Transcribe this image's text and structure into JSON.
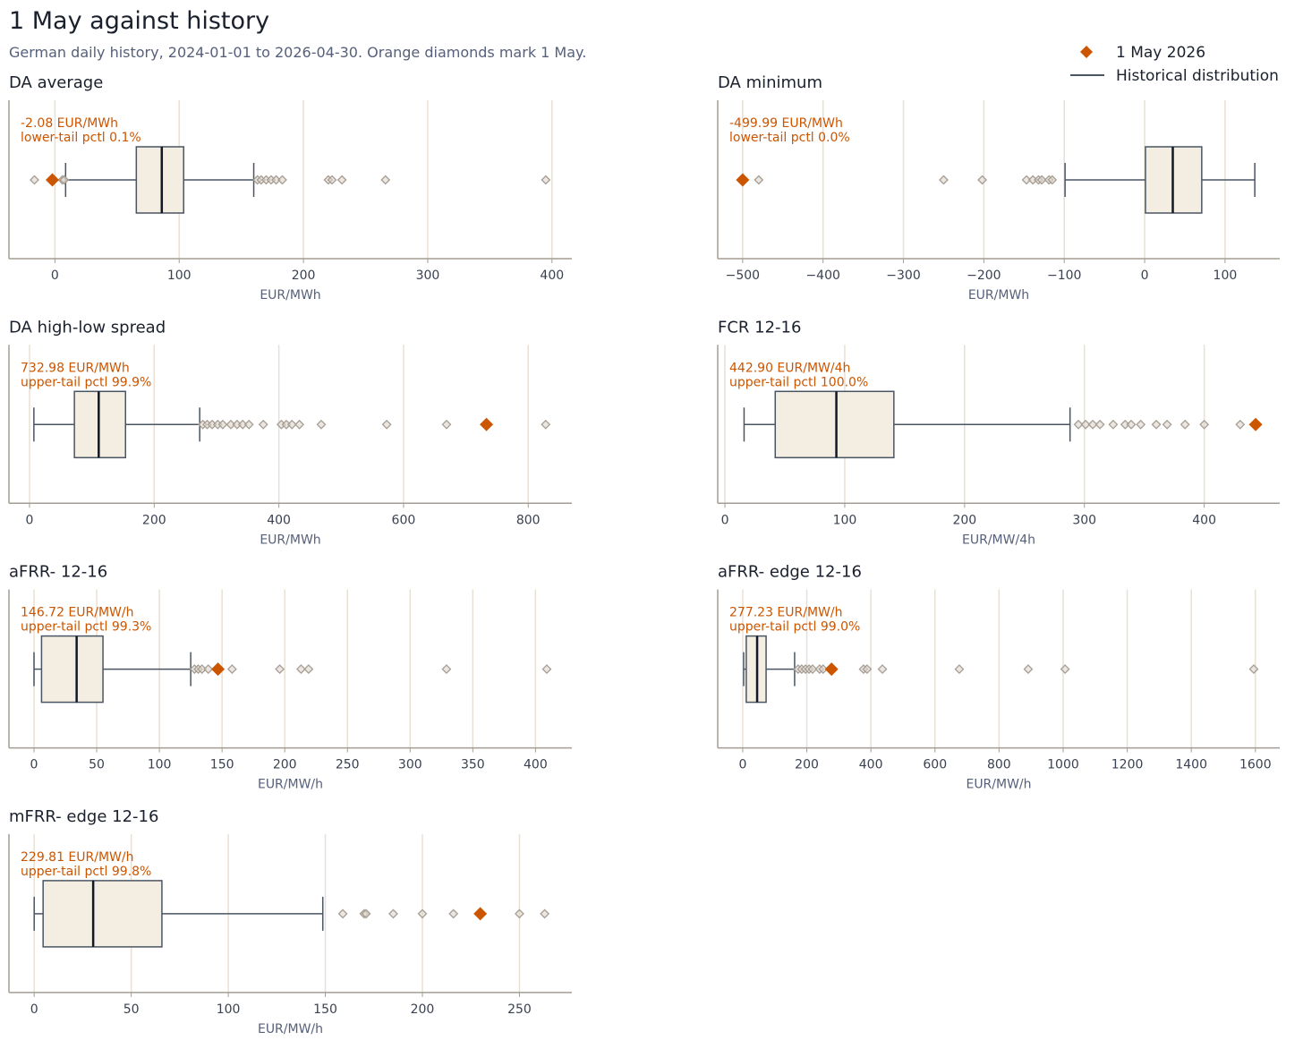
{
  "header": {
    "title": "1 May against history",
    "subtitle": "German daily history, 2024-01-01 to 2026-04-30. Orange diamonds mark 1 May."
  },
  "legend": {
    "highlight_label": "1 May 2026",
    "distribution_label": "Historical distribution"
  },
  "colors": {
    "highlight": "#cc5500",
    "box_fill": "#f3ede2",
    "box_stroke": "#4a5563",
    "median": "#111827",
    "outlier_fill": "#ddd5cc",
    "outlier_stroke": "#a69d94",
    "grid": "#e8e0d4",
    "spine": "#a39d94"
  },
  "chart_data": [
    {
      "type": "box",
      "title": "DA average",
      "xlabel": "EUR/MWh",
      "xlim": [
        -37,
        416
      ],
      "ticks": [
        0,
        100,
        200,
        300,
        400
      ],
      "tick_labels": [
        "0",
        "100",
        "200",
        "300",
        "400"
      ],
      "whisker_low": 8.6,
      "q1": 65.5,
      "median": 86,
      "q3": 103.6,
      "whisker_high": 160,
      "outliers": [
        -16.5,
        6,
        7.5,
        163,
        166,
        170,
        174,
        178,
        183,
        220,
        223,
        231,
        266,
        395
      ],
      "highlight": -2.08,
      "annotation": [
        "-2.08 EUR/MWh",
        "lower-tail pctl 0.1%"
      ]
    },
    {
      "type": "box",
      "title": "DA minimum",
      "xlabel": "EUR/MWh",
      "xlim": [
        -531,
        168
      ],
      "ticks": [
        -500,
        -400,
        -300,
        -200,
        -100,
        0,
        100
      ],
      "tick_labels": [
        "−500",
        "−400",
        "−300",
        "−200",
        "−100",
        "0",
        "100"
      ],
      "whisker_low": -99,
      "q1": 1,
      "median": 35,
      "q3": 71,
      "whisker_high": 137,
      "outliers": [
        -480,
        -250,
        -202,
        -147,
        -139,
        -132,
        -128,
        -119,
        -115
      ],
      "highlight": -499.99,
      "annotation": [
        "-499.99 EUR/MWh",
        "lower-tail pctl 0.0%"
      ]
    },
    {
      "type": "box",
      "title": "DA high-low spread",
      "xlabel": "EUR/MWh",
      "xlim": [
        -33,
        870
      ],
      "ticks": [
        0,
        200,
        400,
        600,
        800
      ],
      "tick_labels": [
        "0",
        "200",
        "400",
        "600",
        "800"
      ],
      "whisker_low": 7,
      "q1": 72,
      "median": 111,
      "q3": 154,
      "whisker_high": 273,
      "outliers": [
        278,
        285,
        293,
        302,
        310,
        323,
        333,
        342,
        352,
        375,
        404,
        412,
        421,
        433,
        468,
        573,
        669,
        828
      ],
      "highlight": 732.98,
      "annotation": [
        "732.98 EUR/MWh",
        "upper-tail pctl 99.9%"
      ]
    },
    {
      "type": "box",
      "title": "FCR 12-16",
      "xlabel": "EUR/MW/4h",
      "xlim": [
        -6,
        463
      ],
      "ticks": [
        0,
        100,
        200,
        300,
        400
      ],
      "tick_labels": [
        "0",
        "100",
        "200",
        "300",
        "400"
      ],
      "whisker_low": 16,
      "q1": 42,
      "median": 93,
      "q3": 141,
      "whisker_high": 288,
      "outliers": [
        295,
        301,
        307,
        313,
        324,
        334,
        339,
        347,
        360,
        369,
        384,
        400,
        430
      ],
      "highlight": 442.9,
      "annotation": [
        "442.90 EUR/MW/4h",
        "upper-tail pctl 100.0%"
      ]
    },
    {
      "type": "box",
      "title": "aFRR- 12-16",
      "xlabel": "EUR/MW/h",
      "xlim": [
        -20,
        429
      ],
      "ticks": [
        0,
        50,
        100,
        150,
        200,
        250,
        300,
        350,
        400
      ],
      "tick_labels": [
        "0",
        "50",
        "100",
        "150",
        "200",
        "250",
        "300",
        "350",
        "400"
      ],
      "whisker_low": 0,
      "q1": 6,
      "median": 34,
      "q3": 55,
      "whisker_high": 125,
      "outliers": [
        128,
        131,
        134,
        139,
        158,
        196,
        213,
        219,
        329,
        409
      ],
      "highlight": 146.72,
      "annotation": [
        "146.72 EUR/MW/h",
        "upper-tail pctl 99.3%"
      ]
    },
    {
      "type": "box",
      "title": "aFRR- edge 12-16",
      "xlabel": "EUR/MW/h",
      "xlim": [
        -78,
        1676
      ],
      "ticks": [
        0,
        200,
        400,
        600,
        800,
        1000,
        1200,
        1400,
        1600
      ],
      "tick_labels": [
        "0",
        "200",
        "400",
        "600",
        "800",
        "1000",
        "1200",
        "1400",
        "1600"
      ],
      "whisker_low": 3,
      "q1": 11,
      "median": 45,
      "q3": 73,
      "whisker_high": 162,
      "outliers": [
        173,
        184,
        196,
        207,
        218,
        240,
        251,
        377,
        388,
        436,
        676,
        891,
        1006,
        1595
      ],
      "highlight": 277.23,
      "annotation": [
        "277.23 EUR/MW/h",
        "upper-tail pctl 99.0%"
      ]
    },
    {
      "type": "box",
      "title": "mFRR- edge 12-16",
      "xlabel": "EUR/MW/h",
      "xlim": [
        -13,
        277
      ],
      "ticks": [
        0,
        50,
        100,
        150,
        200,
        250
      ],
      "tick_labels": [
        "0",
        "50",
        "100",
        "150",
        "200",
        "250"
      ],
      "whisker_low": 0,
      "q1": 4.6,
      "median": 30.4,
      "q3": 65.8,
      "whisker_high": 148.7,
      "outliers": [
        159,
        170,
        171,
        185,
        200,
        216,
        250,
        263
      ],
      "highlight": 229.81,
      "annotation": [
        "229.81 EUR/MW/h",
        "upper-tail pctl 99.8%"
      ]
    }
  ]
}
